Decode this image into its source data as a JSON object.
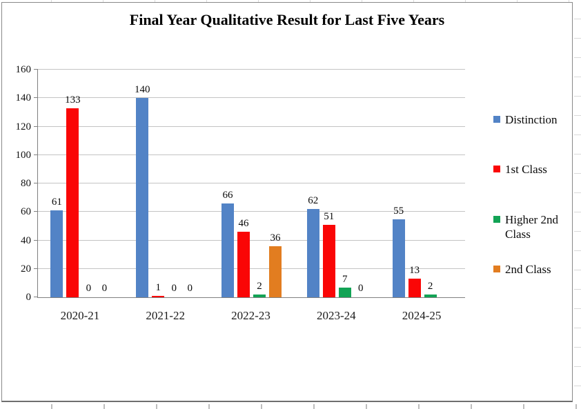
{
  "chart_data": {
    "type": "bar",
    "title": "Final Year Qualitative Result for Last Five Years",
    "categories": [
      "2020-21",
      "2021-22",
      "2022-23",
      "2023-24",
      "2024-25"
    ],
    "series": [
      {
        "name": "Distinction",
        "color": "#5283c6",
        "values": [
          61,
          140,
          66,
          62,
          55
        ]
      },
      {
        "name": "1st Class",
        "color": "#fa0606",
        "values": [
          133,
          1,
          46,
          51,
          13
        ]
      },
      {
        "name": "Higher 2nd Class",
        "color": "#12a355",
        "values": [
          0,
          0,
          2,
          7,
          2
        ]
      },
      {
        "name": "2nd Class",
        "color": "#e27d20",
        "values": [
          0,
          0,
          36,
          0,
          null
        ]
      }
    ],
    "xlabel": "",
    "ylabel": "",
    "ylim": [
      0,
      160
    ],
    "yticks": [
      0,
      20,
      40,
      60,
      80,
      100,
      120,
      140,
      160
    ],
    "grid": true,
    "legend_position": "right",
    "data_labels": true
  }
}
